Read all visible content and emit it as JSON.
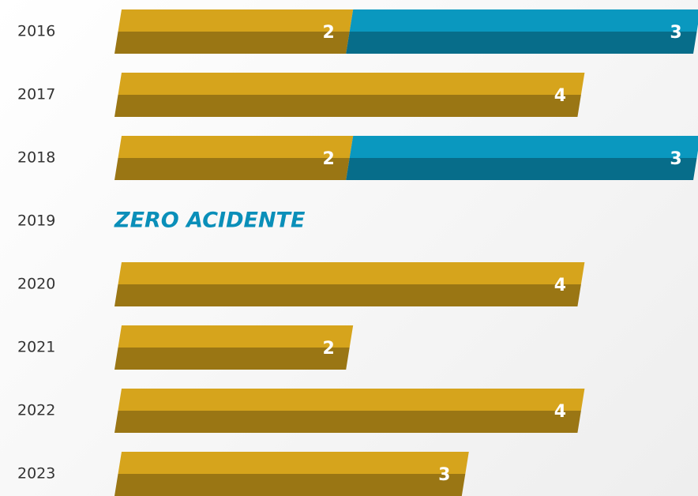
{
  "chart_data": {
    "type": "stacked-bar-horizontal",
    "categories": [
      "2016",
      "2017",
      "2018",
      "2019",
      "2020",
      "2021",
      "2022",
      "2023"
    ],
    "series": [
      {
        "color": "#d6a41c",
        "values": [
          2,
          4,
          2,
          null,
          4,
          2,
          4,
          3
        ]
      },
      {
        "color": "#0a98bf",
        "values": [
          3,
          null,
          3,
          null,
          null,
          null,
          null,
          null
        ]
      }
    ],
    "annotation": "ZERO ACIDENTE"
  }
}
